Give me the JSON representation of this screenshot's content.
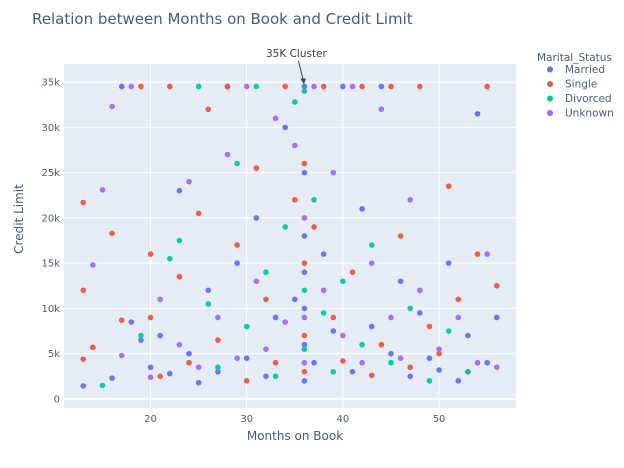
{
  "chart_data": {
    "type": "scatter",
    "title": "Relation between Months on Book and Credit Limit",
    "xlabel": "Months on Book",
    "ylabel": "Credit Limit",
    "xlim": [
      11,
      58
    ],
    "ylim": [
      -1000,
      37000
    ],
    "xticks": [
      20,
      30,
      40,
      50
    ],
    "yticks": [
      0,
      5000,
      10000,
      15000,
      20000,
      25000,
      30000,
      35000
    ],
    "ytick_labels": [
      "0",
      "5k",
      "10k",
      "15k",
      "20k",
      "25k",
      "30k",
      "35k"
    ],
    "grid": true,
    "background": "#e5ecf6",
    "legend": {
      "title": "Marital_Status",
      "position": "right"
    },
    "annotation": {
      "text": "35K Cluster",
      "x": 36,
      "y": 34516
    },
    "series": [
      {
        "name": "Married",
        "color": "#636efa",
        "points": [
          [
            13,
            1438
          ],
          [
            16,
            2300
          ],
          [
            17,
            34516
          ],
          [
            18,
            8500
          ],
          [
            19,
            6500
          ],
          [
            20,
            3500
          ],
          [
            21,
            7000
          ],
          [
            22,
            2800
          ],
          [
            23,
            23000
          ],
          [
            24,
            5000
          ],
          [
            25,
            1800
          ],
          [
            26,
            12000
          ],
          [
            27,
            3000
          ],
          [
            28,
            34516
          ],
          [
            29,
            15000
          ],
          [
            30,
            4500
          ],
          [
            31,
            20000
          ],
          [
            32,
            2500
          ],
          [
            33,
            9000
          ],
          [
            34,
            30000
          ],
          [
            35,
            11000
          ],
          [
            36,
            34516
          ],
          [
            36,
            2000
          ],
          [
            36,
            6000
          ],
          [
            36,
            10000
          ],
          [
            36,
            14000
          ],
          [
            36,
            18000
          ],
          [
            36,
            25000
          ],
          [
            37,
            4000
          ],
          [
            38,
            16000
          ],
          [
            39,
            7500
          ],
          [
            40,
            34516
          ],
          [
            41,
            3000
          ],
          [
            42,
            21000
          ],
          [
            43,
            8000
          ],
          [
            44,
            34516
          ],
          [
            45,
            5000
          ],
          [
            46,
            13000
          ],
          [
            47,
            2500
          ],
          [
            48,
            9500
          ],
          [
            49,
            4500
          ],
          [
            50,
            3200
          ],
          [
            51,
            15000
          ],
          [
            52,
            2000
          ],
          [
            53,
            7000
          ],
          [
            54,
            31500
          ],
          [
            55,
            4000
          ],
          [
            56,
            9000
          ]
        ]
      },
      {
        "name": "Single",
        "color": "#ef553b",
        "points": [
          [
            13,
            21700
          ],
          [
            13,
            12000
          ],
          [
            13,
            4400
          ],
          [
            14,
            5700
          ],
          [
            16,
            18300
          ],
          [
            17,
            8700
          ],
          [
            19,
            34516
          ],
          [
            20,
            16000
          ],
          [
            20,
            9000
          ],
          [
            21,
            2500
          ],
          [
            22,
            34516
          ],
          [
            23,
            13500
          ],
          [
            24,
            4000
          ],
          [
            25,
            20500
          ],
          [
            26,
            32000
          ],
          [
            27,
            6500
          ],
          [
            28,
            34516
          ],
          [
            29,
            17000
          ],
          [
            30,
            2000
          ],
          [
            31,
            25500
          ],
          [
            32,
            11000
          ],
          [
            33,
            4000
          ],
          [
            34,
            34516
          ],
          [
            35,
            22000
          ],
          [
            36,
            26000
          ],
          [
            36,
            15000
          ],
          [
            36,
            7000
          ],
          [
            36,
            3000
          ],
          [
            37,
            19000
          ],
          [
            38,
            34516
          ],
          [
            39,
            9000
          ],
          [
            40,
            4200
          ],
          [
            41,
            14000
          ],
          [
            42,
            34516
          ],
          [
            43,
            2600
          ],
          [
            44,
            6000
          ],
          [
            45,
            34516
          ],
          [
            46,
            18000
          ],
          [
            47,
            3500
          ],
          [
            48,
            34516
          ],
          [
            49,
            8000
          ],
          [
            50,
            5000
          ],
          [
            51,
            23500
          ],
          [
            52,
            11000
          ],
          [
            53,
            3000
          ],
          [
            54,
            16000
          ],
          [
            55,
            34516
          ],
          [
            56,
            12500
          ]
        ]
      },
      {
        "name": "Divorced",
        "color": "#00cc96",
        "points": [
          [
            15,
            1500
          ],
          [
            19,
            7000
          ],
          [
            22,
            15500
          ],
          [
            23,
            17500
          ],
          [
            25,
            34516
          ],
          [
            26,
            10500
          ],
          [
            27,
            3500
          ],
          [
            29,
            26000
          ],
          [
            30,
            8000
          ],
          [
            31,
            34516
          ],
          [
            32,
            14000
          ],
          [
            33,
            2500
          ],
          [
            34,
            19000
          ],
          [
            35,
            32800
          ],
          [
            36,
            34000
          ],
          [
            36,
            12000
          ],
          [
            36,
            5500
          ],
          [
            37,
            22000
          ],
          [
            38,
            9500
          ],
          [
            39,
            3000
          ],
          [
            40,
            13000
          ],
          [
            42,
            6000
          ],
          [
            43,
            17000
          ],
          [
            45,
            4000
          ],
          [
            47,
            10000
          ],
          [
            49,
            2000
          ],
          [
            51,
            7500
          ],
          [
            53,
            3000
          ]
        ]
      },
      {
        "name": "Unknown",
        "color": "#ab63fa",
        "points": [
          [
            14,
            14800
          ],
          [
            15,
            23100
          ],
          [
            16,
            32300
          ],
          [
            17,
            4800
          ],
          [
            18,
            34516
          ],
          [
            20,
            2400
          ],
          [
            21,
            11000
          ],
          [
            23,
            6000
          ],
          [
            24,
            24000
          ],
          [
            25,
            3500
          ],
          [
            27,
            9000
          ],
          [
            28,
            27000
          ],
          [
            29,
            4500
          ],
          [
            30,
            34516
          ],
          [
            31,
            13000
          ],
          [
            32,
            5500
          ],
          [
            33,
            31000
          ],
          [
            34,
            8500
          ],
          [
            35,
            28000
          ],
          [
            36,
            20000
          ],
          [
            36,
            9000
          ],
          [
            36,
            4000
          ],
          [
            37,
            34516
          ],
          [
            38,
            12000
          ],
          [
            39,
            25000
          ],
          [
            40,
            7000
          ],
          [
            41,
            34516
          ],
          [
            42,
            4000
          ],
          [
            43,
            15000
          ],
          [
            44,
            32000
          ],
          [
            45,
            9000
          ],
          [
            46,
            4500
          ],
          [
            47,
            22000
          ],
          [
            48,
            12000
          ],
          [
            50,
            5500
          ],
          [
            52,
            9000
          ],
          [
            54,
            4000
          ],
          [
            55,
            16000
          ],
          [
            56,
            3500
          ]
        ]
      }
    ]
  }
}
